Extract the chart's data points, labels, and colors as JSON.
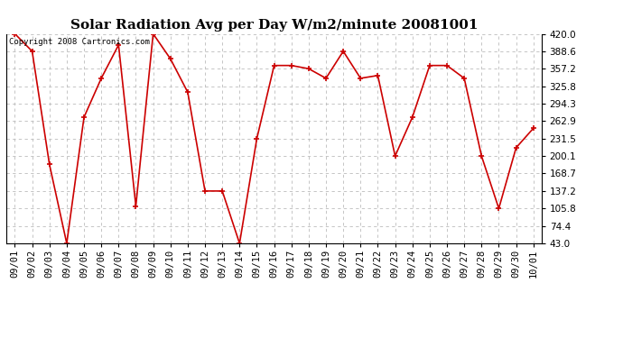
{
  "title": "Solar Radiation Avg per Day W/m2/minute 20081001",
  "copyright": "Copyright 2008 Cartronics.com",
  "dates": [
    "09/01",
    "09/02",
    "09/03",
    "09/04",
    "09/05",
    "09/06",
    "09/07",
    "09/08",
    "09/09",
    "09/10",
    "09/11",
    "09/12",
    "09/13",
    "09/14",
    "09/15",
    "09/16",
    "09/17",
    "09/18",
    "09/19",
    "09/20",
    "09/21",
    "09/22",
    "09/23",
    "09/24",
    "09/25",
    "09/26",
    "09/27",
    "09/28",
    "09/29",
    "09/30",
    "10/01"
  ],
  "values": [
    420.0,
    388.6,
    185.0,
    43.0,
    270.0,
    340.0,
    400.0,
    110.0,
    420.0,
    375.0,
    315.0,
    137.2,
    137.2,
    43.0,
    231.5,
    363.0,
    363.0,
    357.2,
    340.0,
    388.6,
    340.0,
    345.0,
    200.1,
    270.0,
    363.0,
    363.0,
    340.0,
    200.1,
    105.8,
    215.0,
    250.0
  ],
  "ylim": [
    43.0,
    420.0
  ],
  "yticks": [
    43.0,
    74.4,
    105.8,
    137.2,
    168.7,
    200.1,
    231.5,
    262.9,
    294.3,
    325.8,
    357.2,
    388.6,
    420.0
  ],
  "line_color": "#cc0000",
  "marker": "+",
  "marker_size": 5,
  "marker_edge_width": 1.2,
  "bg_color": "#ffffff",
  "grid_color": "#bbbbbb",
  "title_fontsize": 11,
  "tick_fontsize": 7.5,
  "copyright_fontsize": 6.5
}
